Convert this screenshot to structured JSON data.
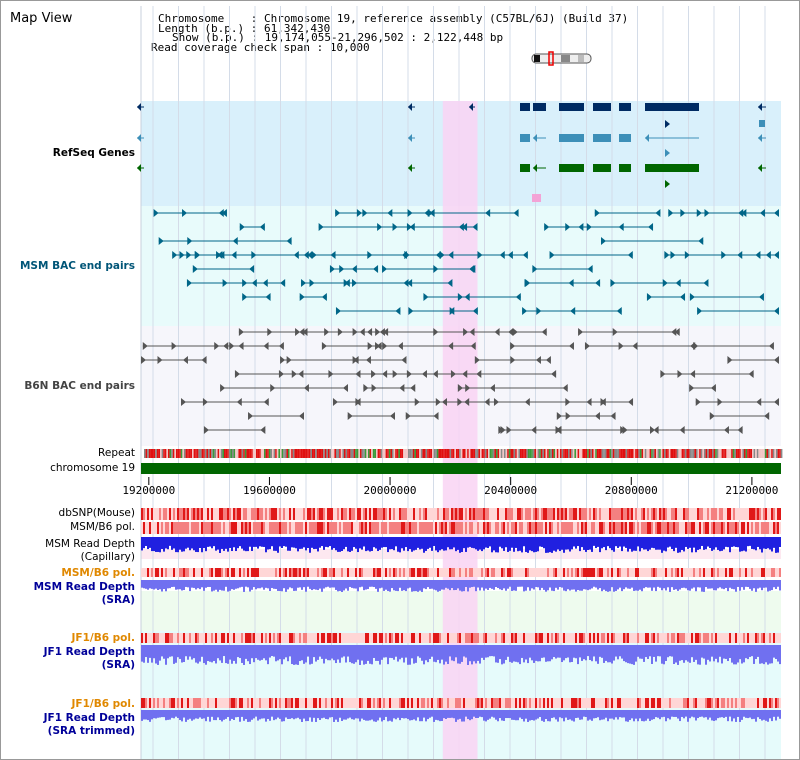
{
  "title": "Map View",
  "info": {
    "chromosome_label": "Chromosome",
    "chromosome_value": "Chromosome 19, reference assembly (C57BL/6J) (Build 37)",
    "length_label": "Length (b.p.)",
    "length_value": "61,342,430",
    "show_label": "Show (b.p.)",
    "show_value": "19,174,055-21,296,502 : 2,122,448 bp",
    "coverage_label": "Read coverage check span",
    "coverage_value": "10,000"
  },
  "tracks": {
    "refseq": "RefSeq Genes",
    "msm_bac": "MSM BAC end pairs",
    "b6n_bac": "B6N BAC end pairs",
    "repeat": "Repeat",
    "chromosome": "chromosome 19",
    "dbsnp": "dbSNP(Mouse)",
    "msm_b6_pol": "MSM/B6 pol.",
    "msm_depth_cap_1": "MSM Read Depth",
    "msm_depth_cap_2": "(Capillary)",
    "msm_b6_pol_sra": "MSM/B6 pol.",
    "msm_depth_sra_1": "MSM Read Depth",
    "msm_depth_sra_2": "(SRA)",
    "jf1_b6_pol": "JF1/B6 pol.",
    "jf1_depth_sra_1": "JF1 Read Depth",
    "jf1_depth_sra_2": "(SRA)",
    "jf1_b6_pol_trim": "JF1/B6 pol.",
    "jf1_depth_trim_1": "JF1 Read Depth",
    "jf1_depth_trim_2": "(SRA trimmed)"
  },
  "axis": {
    "start": 19174055,
    "end": 21296502,
    "ticks": [
      {
        "pos": 19200000,
        "label": "19200000"
      },
      {
        "pos": 19600000,
        "label": "19600000"
      },
      {
        "pos": 20000000,
        "label": "20000000"
      },
      {
        "pos": 20400000,
        "label": "20400000"
      },
      {
        "pos": 20800000,
        "label": "20800000"
      },
      {
        "pos": 21200000,
        "label": "21200000"
      }
    ]
  },
  "highlight": {
    "start": 20175000,
    "end": 20290000
  },
  "colors": {
    "refseq_bg": "#d9f0fb",
    "msm_bg": "#e8fbfb",
    "highlight": "#f9d3f3",
    "refseq_dark": "#002b63",
    "refseq_mid": "#3d8fb8",
    "refseq_green": "#006600",
    "msm_line": "#006688",
    "b6n_line": "#555555",
    "chromosome": "#006600",
    "snp": "#ee3333",
    "depth_cap": "#2020e0",
    "depth_sra": "#7070f0",
    "jf1_label": "#e08800",
    "depth_label": "#000099"
  }
}
